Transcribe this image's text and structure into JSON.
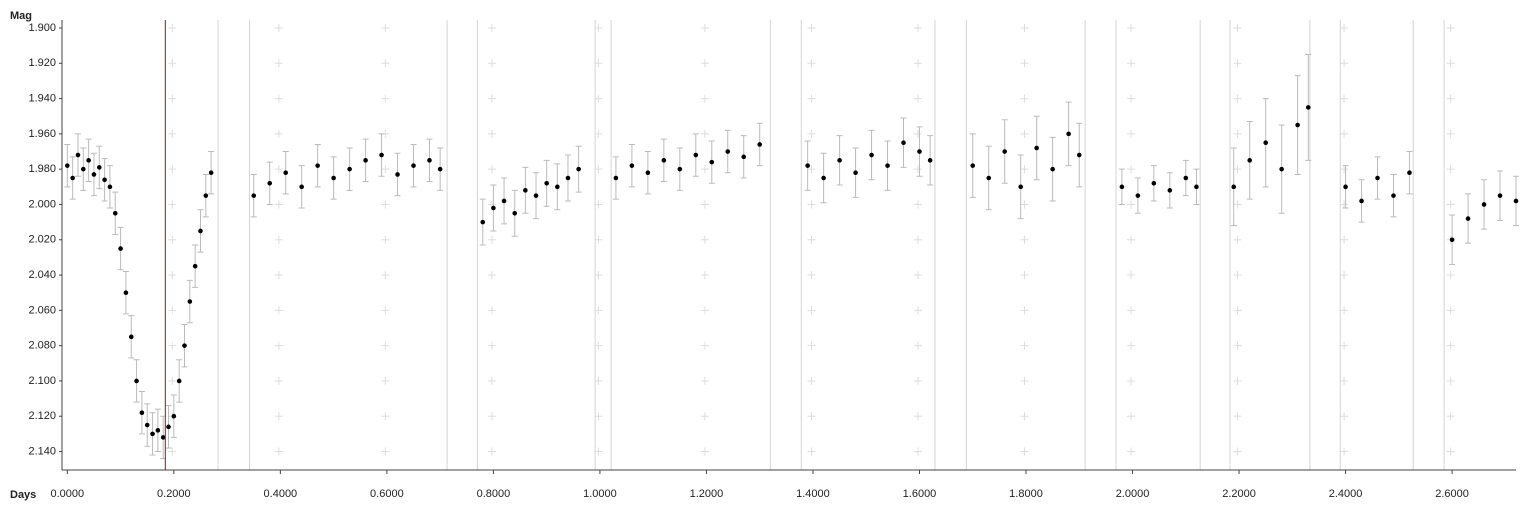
{
  "chart_data": {
    "type": "scatter",
    "x_label": "Days",
    "y_label": "Mag",
    "xlim": [
      -0.01,
      2.72
    ],
    "ylim": [
      2.155,
      1.9
    ],
    "y_inverted": true,
    "grid": "cross",
    "xticks": [
      {
        "value": 0,
        "label": "0.0000"
      },
      {
        "value": 0.2,
        "label": "0.2000"
      },
      {
        "value": 0.4,
        "label": "0.4000"
      },
      {
        "value": 0.6,
        "label": "0.6000"
      },
      {
        "value": 0.8,
        "label": "0.8000"
      },
      {
        "value": 1.0,
        "label": "1.0000"
      },
      {
        "value": 1.2,
        "label": "1.2000"
      },
      {
        "value": 1.4,
        "label": "1.4000"
      },
      {
        "value": 1.6,
        "label": "1.6000"
      },
      {
        "value": 1.8,
        "label": "1.8000"
      },
      {
        "value": 2.0,
        "label": "2.0000"
      },
      {
        "value": 2.2,
        "label": "2.2000"
      },
      {
        "value": 2.4,
        "label": "2.4000"
      },
      {
        "value": 2.6,
        "label": "2.6000"
      }
    ],
    "yticks": [
      {
        "value": 1.9,
        "label": "1.900"
      },
      {
        "value": 1.92,
        "label": "1.920"
      },
      {
        "value": 1.94,
        "label": "1.940"
      },
      {
        "value": 1.96,
        "label": "1.960"
      },
      {
        "value": 1.98,
        "label": "1.980"
      },
      {
        "value": 2.0,
        "label": "2.000"
      },
      {
        "value": 2.02,
        "label": "2.020"
      },
      {
        "value": 2.04,
        "label": "2.040"
      },
      {
        "value": 2.06,
        "label": "2.060"
      },
      {
        "value": 2.08,
        "label": "2.080"
      },
      {
        "value": 2.1,
        "label": "2.100"
      },
      {
        "value": 2.12,
        "label": "2.120"
      },
      {
        "value": 2.14,
        "label": "2.140"
      }
    ],
    "marker_x": 0.184,
    "marker_color": "#a01010",
    "session_edges": [
      0.283,
      0.342,
      0.713,
      0.77,
      0.991,
      1.021,
      1.32,
      1.378,
      1.629,
      1.688,
      1.911,
      1.969,
      2.127,
      2.183,
      2.333,
      2.39,
      2.527,
      2.585
    ],
    "series": [
      {
        "color": "#000000",
        "error_color": "#bbbbbb",
        "x": [
          0.0,
          0.01,
          0.02,
          0.03,
          0.04,
          0.05,
          0.06,
          0.07,
          0.08,
          0.09,
          0.1,
          0.11,
          0.12,
          0.13,
          0.14,
          0.15,
          0.16,
          0.17,
          0.18,
          0.19,
          0.2,
          0.21,
          0.22,
          0.23,
          0.24,
          0.25,
          0.26,
          0.27,
          0.35,
          0.38,
          0.41,
          0.44,
          0.47,
          0.5,
          0.53,
          0.56,
          0.59,
          0.62,
          0.65,
          0.68,
          0.7,
          0.78,
          0.8,
          0.82,
          0.84,
          0.86,
          0.88,
          0.9,
          0.92,
          0.94,
          0.96,
          1.03,
          1.06,
          1.09,
          1.12,
          1.15,
          1.18,
          1.21,
          1.24,
          1.27,
          1.3,
          1.39,
          1.42,
          1.45,
          1.48,
          1.51,
          1.54,
          1.57,
          1.6,
          1.62,
          1.7,
          1.73,
          1.76,
          1.79,
          1.82,
          1.85,
          1.88,
          1.9,
          1.98,
          2.01,
          2.04,
          2.07,
          2.1,
          2.12,
          2.19,
          2.22,
          2.25,
          2.28,
          2.31,
          2.33,
          2.4,
          2.43,
          2.46,
          2.49,
          2.52,
          2.6,
          2.63,
          2.66,
          2.69,
          2.72
        ],
        "values": [
          1.978,
          1.985,
          1.972,
          1.98,
          1.975,
          1.983,
          1.979,
          1.986,
          1.99,
          2.005,
          2.025,
          2.05,
          2.075,
          2.1,
          2.118,
          2.125,
          2.13,
          2.128,
          2.132,
          2.126,
          2.12,
          2.1,
          2.08,
          2.055,
          2.035,
          2.015,
          1.995,
          1.982,
          1.995,
          1.988,
          1.982,
          1.99,
          1.978,
          1.985,
          1.98,
          1.975,
          1.972,
          1.983,
          1.978,
          1.975,
          1.98,
          2.01,
          2.002,
          1.998,
          2.005,
          1.992,
          1.995,
          1.988,
          1.99,
          1.985,
          1.98,
          1.985,
          1.978,
          1.982,
          1.975,
          1.98,
          1.972,
          1.976,
          1.97,
          1.973,
          1.966,
          1.978,
          1.985,
          1.975,
          1.982,
          1.972,
          1.978,
          1.965,
          1.97,
          1.975,
          1.978,
          1.985,
          1.97,
          1.99,
          1.968,
          1.98,
          1.96,
          1.972,
          1.99,
          1.995,
          1.988,
          1.992,
          1.985,
          1.99,
          1.99,
          1.975,
          1.965,
          1.98,
          1.955,
          1.945,
          1.99,
          1.998,
          1.985,
          1.995,
          1.982,
          2.02,
          2.008,
          2.0,
          1.995,
          1.998
        ],
        "errors": [
          0.012,
          0.012,
          0.012,
          0.012,
          0.012,
          0.012,
          0.012,
          0.012,
          0.012,
          0.012,
          0.012,
          0.012,
          0.012,
          0.012,
          0.012,
          0.012,
          0.012,
          0.012,
          0.012,
          0.012,
          0.012,
          0.012,
          0.012,
          0.012,
          0.012,
          0.012,
          0.012,
          0.012,
          0.012,
          0.012,
          0.012,
          0.012,
          0.012,
          0.012,
          0.012,
          0.012,
          0.012,
          0.012,
          0.012,
          0.012,
          0.012,
          0.013,
          0.013,
          0.013,
          0.013,
          0.013,
          0.013,
          0.013,
          0.013,
          0.013,
          0.013,
          0.012,
          0.012,
          0.012,
          0.012,
          0.012,
          0.012,
          0.012,
          0.012,
          0.012,
          0.012,
          0.014,
          0.014,
          0.014,
          0.014,
          0.014,
          0.014,
          0.014,
          0.014,
          0.014,
          0.018,
          0.018,
          0.018,
          0.018,
          0.018,
          0.018,
          0.018,
          0.018,
          0.01,
          0.01,
          0.01,
          0.01,
          0.01,
          0.01,
          0.022,
          0.022,
          0.025,
          0.025,
          0.028,
          0.03,
          0.012,
          0.012,
          0.012,
          0.012,
          0.012,
          0.014,
          0.014,
          0.014,
          0.014,
          0.014
        ]
      }
    ]
  }
}
